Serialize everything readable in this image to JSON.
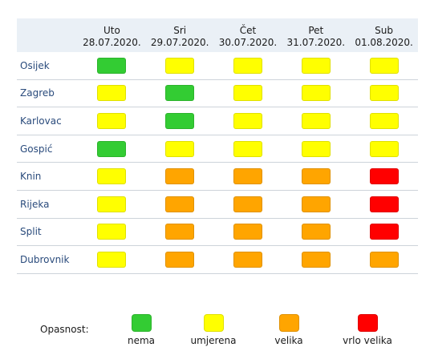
{
  "colors": {
    "nema": "#33cc33",
    "umjerena": "#ffff00",
    "velika": "#ffa500",
    "vrlo_velika": "#ff0000"
  },
  "days": [
    {
      "name": "Uto",
      "date": "28.07.2020."
    },
    {
      "name": "Sri",
      "date": "29.07.2020."
    },
    {
      "name": "Čet",
      "date": "30.07.2020."
    },
    {
      "name": "Pet",
      "date": "31.07.2020."
    },
    {
      "name": "Sub",
      "date": "01.08.2020."
    }
  ],
  "rows": [
    {
      "city": "Osijek",
      "levels": [
        "nema",
        "umjerena",
        "umjerena",
        "umjerena",
        "umjerena"
      ]
    },
    {
      "city": "Zagreb",
      "levels": [
        "umjerena",
        "nema",
        "umjerena",
        "umjerena",
        "umjerena"
      ]
    },
    {
      "city": "Karlovac",
      "levels": [
        "umjerena",
        "nema",
        "umjerena",
        "umjerena",
        "umjerena"
      ]
    },
    {
      "city": "Gospić",
      "levels": [
        "nema",
        "umjerena",
        "umjerena",
        "umjerena",
        "umjerena"
      ]
    },
    {
      "city": "Knin",
      "levels": [
        "umjerena",
        "velika",
        "velika",
        "velika",
        "vrlo_velika"
      ]
    },
    {
      "city": "Rijeka",
      "levels": [
        "umjerena",
        "velika",
        "velika",
        "velika",
        "vrlo_velika"
      ]
    },
    {
      "city": "Split",
      "levels": [
        "umjerena",
        "velika",
        "velika",
        "velika",
        "vrlo_velika"
      ]
    },
    {
      "city": "Dubrovnik",
      "levels": [
        "umjerena",
        "velika",
        "velika",
        "velika",
        "velika"
      ]
    }
  ],
  "legend": {
    "title": "Opasnost:",
    "items": [
      {
        "key": "nema",
        "label": "nema"
      },
      {
        "key": "umjerena",
        "label": "umjerena"
      },
      {
        "key": "velika",
        "label": "velika"
      },
      {
        "key": "vrlo_velika",
        "label": "vrlo velika"
      }
    ]
  }
}
